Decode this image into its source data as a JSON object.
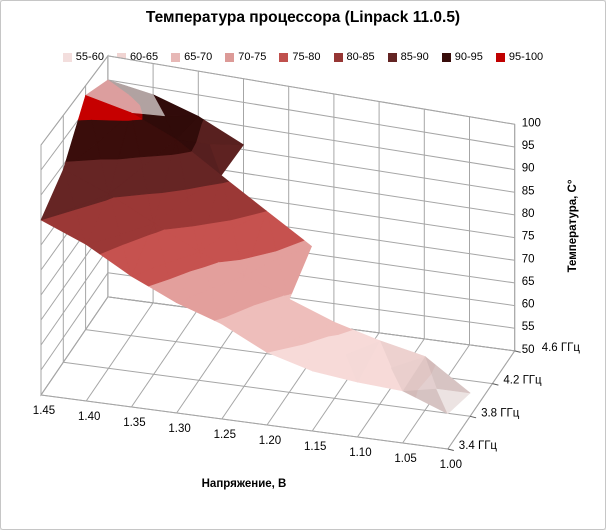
{
  "title": "Температура процессора (Linpack 11.0.5)",
  "legend": {
    "items": [
      {
        "label": "55-60",
        "color": "#f3dedd"
      },
      {
        "label": "60-65",
        "color": "#f0d4d2"
      },
      {
        "label": "65-70",
        "color": "#e7b8b6"
      },
      {
        "label": "70-75",
        "color": "#dc9a97"
      },
      {
        "label": "75-80",
        "color": "#c0504d"
      },
      {
        "label": "80-85",
        "color": "#963634"
      },
      {
        "label": "85-90",
        "color": "#632423"
      },
      {
        "label": "90-95",
        "color": "#380d0b"
      },
      {
        "label": "95-100",
        "color": "#c00000"
      }
    ]
  },
  "chart_data": {
    "type": "surface",
    "title": "Температура процессора (Linpack 11.0.5)",
    "xlabel": "Напряжение, В",
    "ylabel": "Температура, С°",
    "x_categories": [
      "1.45",
      "1.40",
      "1.35",
      "1.30",
      "1.25",
      "1.20",
      "1.15",
      "1.10",
      "1.05",
      "1.00"
    ],
    "series": [
      {
        "name": "3.4 ГГц",
        "values": [
          85,
          81.5,
          76.5,
          72.5,
          69.5,
          65,
          62.5,
          61.5,
          61,
          57.5
        ]
      },
      {
        "name": "3.8 ГГц",
        "values": [
          89,
          85.5,
          81,
          76.5,
          73,
          69.5,
          66,
          63.5,
          61.5,
          55
        ]
      },
      {
        "name": "4.2 ГГц",
        "values": [
          98,
          96,
          92,
          86,
          80,
          74,
          null,
          null,
          null,
          null
        ]
      },
      {
        "name": "4.6 ГГц",
        "values": [
          95,
          93.5,
          90.5,
          86,
          null,
          null,
          null,
          null,
          null,
          null
        ]
      }
    ],
    "value_axis": {
      "min": 50,
      "max": 100,
      "step": 5
    },
    "bands": [
      {
        "range": "55-60",
        "lo": 55,
        "hi": 60,
        "color": "#f3dedd"
      },
      {
        "range": "60-65",
        "lo": 60,
        "hi": 65,
        "color": "#f0d4d2"
      },
      {
        "range": "65-70",
        "lo": 65,
        "hi": 70,
        "color": "#e7b8b6"
      },
      {
        "range": "70-75",
        "lo": 70,
        "hi": 75,
        "color": "#dc9a97"
      },
      {
        "range": "75-80",
        "lo": 75,
        "hi": 80,
        "color": "#c0504d"
      },
      {
        "range": "80-85",
        "lo": 80,
        "hi": 85,
        "color": "#963634"
      },
      {
        "range": "85-90",
        "lo": 85,
        "hi": 90,
        "color": "#632423"
      },
      {
        "range": "90-95",
        "lo": 90,
        "hi": 95,
        "color": "#380d0b"
      },
      {
        "range": "95-100",
        "lo": 95,
        "hi": 100,
        "color": "#c00000"
      }
    ],
    "grid_color": "#a6a6a6",
    "legend_position": "top"
  }
}
